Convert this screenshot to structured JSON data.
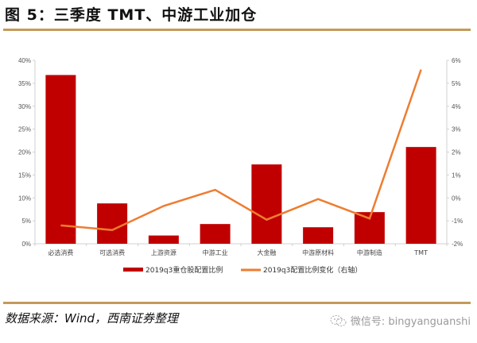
{
  "header": {
    "title": "图 5：三季度 TMT、中游工业加仓"
  },
  "footer": {
    "source": "数据来源：Wind，西南证券整理",
    "watermark": "微信号: bingyanguanshi",
    "watermark_icon": "wechat-icon"
  },
  "colors": {
    "bar": "#c00000",
    "line": "#ed7d31",
    "rule": "#c49a5b",
    "axis": "#d0d0d0"
  },
  "chart_data": {
    "type": "bar+line",
    "title": "三季度 TMT、中游工业加仓",
    "categories": [
      "必选消费",
      "可选消费",
      "上游资源",
      "中游工业",
      "大金融",
      "中游原材料",
      "中游制造",
      "TMT"
    ],
    "series": [
      {
        "name": "2019q3重仓股配置比例",
        "type": "bar",
        "axis": "left",
        "values": [
          36.8,
          8.8,
          1.8,
          4.3,
          17.3,
          3.6,
          6.9,
          21.1
        ]
      },
      {
        "name": "2019q3配置比例变化（右轴）",
        "type": "line",
        "axis": "right",
        "values": [
          -1.2,
          -1.4,
          -0.35,
          0.35,
          -0.95,
          -0.05,
          -0.9,
          5.6
        ]
      }
    ],
    "y_left": {
      "ylim": [
        0,
        40
      ],
      "ticks": [
        "0%",
        "5%",
        "10%",
        "15%",
        "20%",
        "25%",
        "30%",
        "35%",
        "40%"
      ]
    },
    "y_right": {
      "ylim": [
        -2,
        6
      ],
      "ticks": [
        "-2%",
        "-1%",
        "0%",
        "1%",
        "2%",
        "3%",
        "4%",
        "5%",
        "6%"
      ]
    },
    "xlabel": "",
    "ylabel": "",
    "grid": false,
    "legend_position": "bottom"
  }
}
